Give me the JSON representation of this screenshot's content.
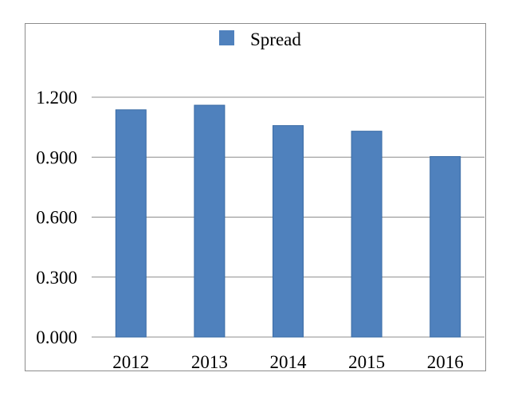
{
  "chart_data": {
    "type": "bar",
    "categories": [
      "2012",
      "2013",
      "2014",
      "2015",
      "2016"
    ],
    "series": [
      {
        "name": "Spread",
        "values": [
          1.137,
          1.16,
          1.058,
          1.03,
          0.903
        ]
      }
    ],
    "title": "",
    "xlabel": "",
    "ylabel": "",
    "ylim": [
      0,
      1.2
    ],
    "yticks": [
      "0.000",
      "0.300",
      "0.600",
      "0.900",
      "1.200"
    ],
    "grid": true,
    "legend_position": "top-center",
    "colors": {
      "bar": "#4f81bd",
      "bar_edge": "#3a6ba5",
      "grid": "#8c8c8c"
    }
  }
}
